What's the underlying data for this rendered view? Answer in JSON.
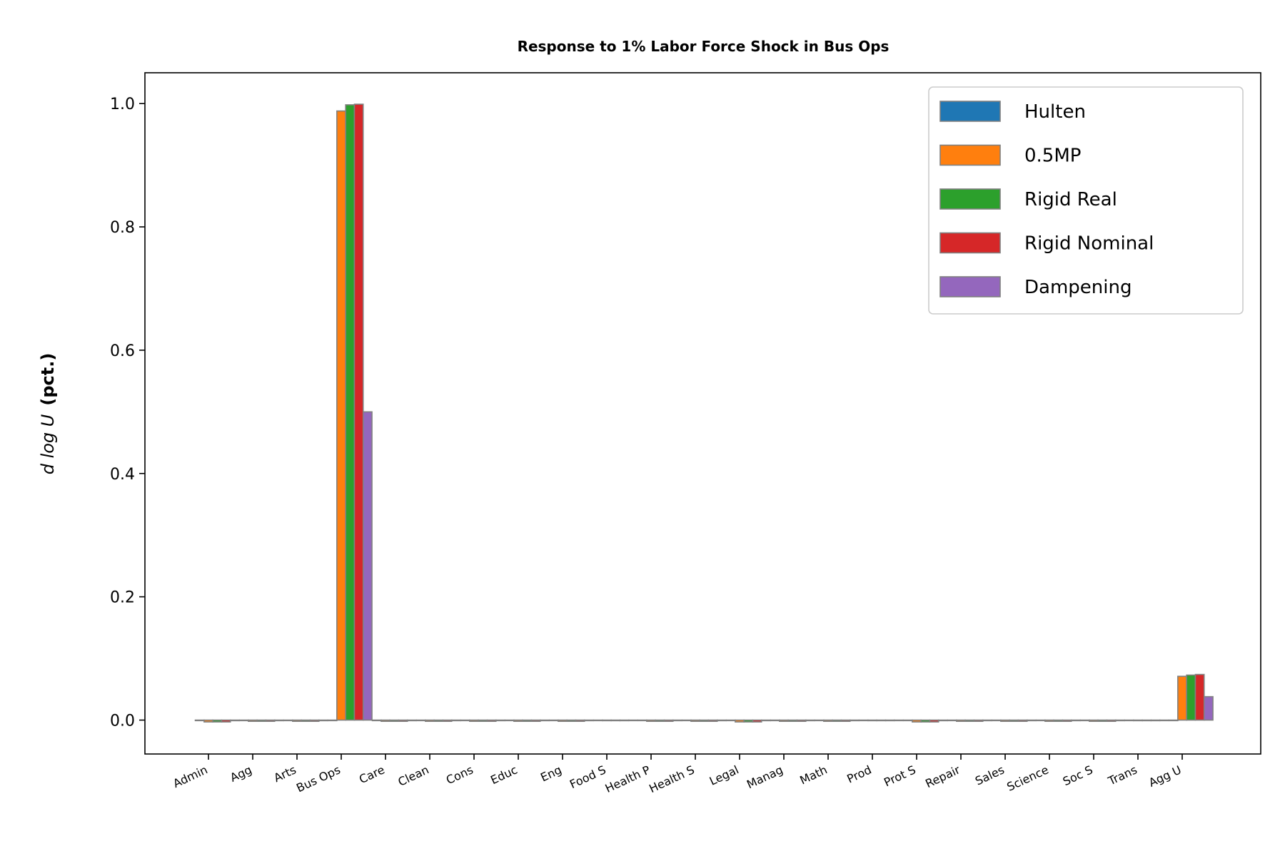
{
  "chart_data": {
    "type": "bar",
    "title": "Response to 1% Labor Force Shock in Bus Ops",
    "ylabel_italic": "d log U",
    "ylabel_bold": "(pct.)",
    "xlabel": "",
    "ylim": [
      -0.055,
      1.05
    ],
    "yticks": [
      0.0,
      0.2,
      0.4,
      0.6,
      0.8,
      1.0
    ],
    "ytick_labels": [
      "0.0",
      "0.2",
      "0.4",
      "0.6",
      "0.8",
      "1.0"
    ],
    "grid": false,
    "legend_position": "top-right",
    "bar_edge_color": "#808080",
    "categories": [
      "Admin",
      "Agg",
      "Arts",
      "Bus Ops",
      "Care",
      "Clean",
      "Cons",
      "Educ",
      "Eng",
      "Food S",
      "Health P",
      "Health S",
      "Legal",
      "Manag",
      "Math",
      "Prod",
      "Prot S",
      "Repair",
      "Sales",
      "Science",
      "Soc S",
      "Trans",
      "Agg U"
    ],
    "series": [
      {
        "name": "Hulten",
        "color": "#1f77b4",
        "values": [
          0,
          0,
          0,
          0,
          0,
          0,
          0,
          0,
          0,
          0,
          0,
          0,
          0,
          0,
          0,
          0,
          0,
          0,
          0,
          0,
          0,
          0,
          0
        ]
      },
      {
        "name": "0.5MP",
        "color": "#ff7f0e",
        "values": [
          -0.003,
          -0.002,
          -0.002,
          0.988,
          -0.002,
          -0.002,
          -0.002,
          -0.002,
          -0.002,
          -0.001,
          -0.002,
          -0.002,
          -0.003,
          -0.002,
          -0.002,
          -0.001,
          -0.003,
          -0.002,
          -0.002,
          -0.002,
          -0.002,
          -0.001,
          0.071
        ]
      },
      {
        "name": "Rigid Real",
        "color": "#2ca02c",
        "values": [
          -0.003,
          -0.002,
          -0.002,
          0.998,
          -0.002,
          -0.002,
          -0.002,
          -0.002,
          -0.002,
          -0.001,
          -0.002,
          -0.002,
          -0.003,
          -0.002,
          -0.002,
          -0.001,
          -0.003,
          -0.002,
          -0.002,
          -0.002,
          -0.002,
          -0.001,
          0.073
        ]
      },
      {
        "name": "Rigid Nominal",
        "color": "#d62728",
        "values": [
          -0.003,
          -0.002,
          -0.002,
          0.999,
          -0.002,
          -0.002,
          -0.002,
          -0.002,
          -0.002,
          -0.001,
          -0.002,
          -0.002,
          -0.003,
          -0.002,
          -0.002,
          -0.001,
          -0.003,
          -0.002,
          -0.002,
          -0.002,
          -0.002,
          -0.001,
          0.074
        ]
      },
      {
        "name": "Dampening",
        "color": "#9467bd",
        "values": [
          -0.001,
          -0.001,
          -0.001,
          0.5,
          -0.001,
          -0.001,
          -0.001,
          -0.001,
          -0.001,
          0,
          -0.001,
          -0.001,
          -0.001,
          -0.001,
          -0.001,
          0,
          -0.001,
          -0.001,
          -0.001,
          -0.001,
          -0.001,
          0,
          0.038
        ]
      }
    ]
  }
}
